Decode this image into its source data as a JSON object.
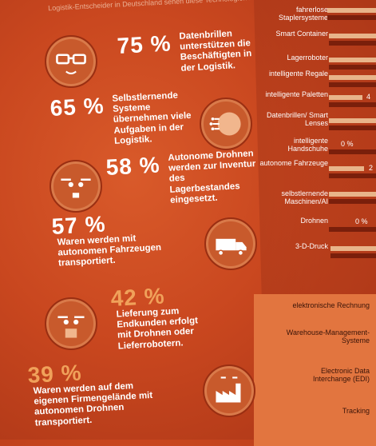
{
  "header": {
    "top_fragment": "Logistik-Entscheider in Deutschland sehen diese Technologien in ihrem Firmengelände..."
  },
  "stats": [
    {
      "percent": "75 %",
      "text": "Datenbrillen unterstützen die Beschäftigten in der Logistik.",
      "icon": "glasses-face-icon"
    },
    {
      "percent": "65 %",
      "text": "Selbstlernende Systeme übernehmen viele Aufgaben in der Logistik.",
      "icon": "brain-head-icon"
    },
    {
      "percent": "58 %",
      "text": "Autonome Drohnen werden zur Inventur des Lagerbestandes eingesetzt.",
      "icon": "drone-face-icon"
    },
    {
      "percent": "57 %",
      "text": "Waren werden mit autonomen Fahrzeugen transportiert.",
      "icon": "truck-icon"
    },
    {
      "percent": "42 %",
      "text": "Lieferung zum Endkunden erfolgt mit Drohnen oder Lieferrobotern.",
      "icon": "delivery-drone-icon"
    },
    {
      "percent": "39 %",
      "text": "Waren werden auf dem eigenen Firmengelände mit autonomen Drohnen transportiert.",
      "icon": "factory-drone-icon"
    }
  ],
  "right_panel": {
    "items": [
      {
        "label": "fahrerlose Staplersysteme",
        "value": ""
      },
      {
        "label": "Smart Container",
        "value": ""
      },
      {
        "label": "Lagerroboter",
        "value": ""
      },
      {
        "label": "intelligente Regale",
        "value": ""
      },
      {
        "label": "intelligente Paletten",
        "value": "4"
      },
      {
        "label": "Datenbrillen/ Smart Lenses",
        "value": ""
      },
      {
        "label": "intelligente Handschuhe",
        "value": "0 %"
      },
      {
        "label": "autonome Fahrzeuge",
        "value": "2"
      },
      {
        "label": "selbstlernende Maschinen/AI",
        "value": ""
      },
      {
        "label": "Drohnen",
        "value": "0 %"
      },
      {
        "label": "3-D-Druck",
        "value": ""
      }
    ],
    "items2": [
      {
        "label": "elektronische Rechnung"
      },
      {
        "label": "Warehouse-Management-Systeme"
      },
      {
        "label": "Electronic Data Interchange (EDI)"
      },
      {
        "label": "Tracking"
      }
    ]
  }
}
